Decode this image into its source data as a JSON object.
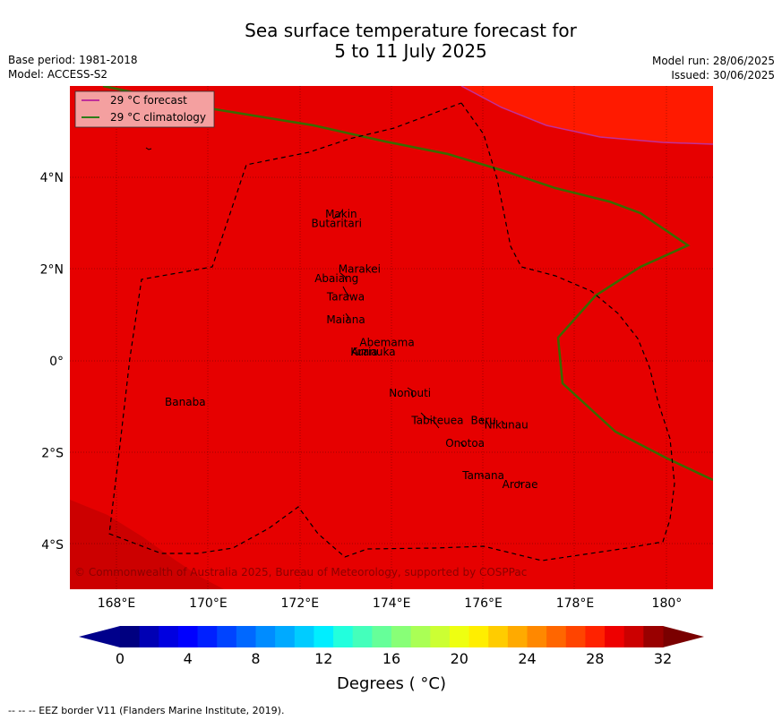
{
  "header": {
    "title_line1": "Sea surface temperature forecast for",
    "title_line2": "5 to 11 July 2025",
    "base_period": "Base period: 1981-2018",
    "model": "Model: ACCESS-S2",
    "model_run": "Model run: 28/06/2025",
    "issued": "Issued: 30/06/2025"
  },
  "legend": {
    "forecast_label": "29 °C  forecast",
    "forecast_color": "#c0309a",
    "climatology_label": "29 °C  climatology",
    "climatology_color": "#2e7d1a"
  },
  "map": {
    "lon_ticks": [
      "168°E",
      "170°E",
      "172°E",
      "174°E",
      "176°E",
      "178°E",
      "180°"
    ],
    "lat_ticks": [
      "4°N",
      "2°N",
      "0°",
      "2°S",
      "4°S"
    ],
    "copyright": "© Commonwealth of Australia 2025, Bureau of Meteorology, supported by COSPPac",
    "fill_colors": {
      "main": "#e60000",
      "warm": "#ff1a00",
      "cool": "#cc0000"
    },
    "places": [
      {
        "name": "Makin",
        "lon": 172.9,
        "lat": 3.2
      },
      {
        "name": "Butaritari",
        "lon": 172.8,
        "lat": 3.0
      },
      {
        "name": "Marakei",
        "lon": 173.3,
        "lat": 2.0
      },
      {
        "name": "Abaiang",
        "lon": 172.8,
        "lat": 1.8
      },
      {
        "name": "Tarawa",
        "lon": 173.0,
        "lat": 1.4
      },
      {
        "name": "Maiana",
        "lon": 173.0,
        "lat": 0.9
      },
      {
        "name": "Abemama",
        "lon": 173.9,
        "lat": 0.4
      },
      {
        "name": "Kuria",
        "lon": 173.4,
        "lat": 0.2
      },
      {
        "name": "Aranuka",
        "lon": 173.6,
        "lat": 0.2
      },
      {
        "name": "Banaba",
        "lon": 169.5,
        "lat": -0.9
      },
      {
        "name": "Nonouti",
        "lon": 174.4,
        "lat": -0.7
      },
      {
        "name": "Tabiteuea",
        "lon": 175.0,
        "lat": -1.3
      },
      {
        "name": "Beru",
        "lon": 176.0,
        "lat": -1.3
      },
      {
        "name": "Nikunau",
        "lon": 176.5,
        "lat": -1.4
      },
      {
        "name": "Onotoa",
        "lon": 175.6,
        "lat": -1.8
      },
      {
        "name": "Tamana",
        "lon": 176.0,
        "lat": -2.5
      },
      {
        "name": "Arorae",
        "lon": 176.8,
        "lat": -2.7
      }
    ]
  },
  "colorbar": {
    "tick_labels": [
      "0",
      "4",
      "8",
      "12",
      "16",
      "20",
      "24",
      "28",
      "32"
    ],
    "title": "Degrees ( °C)",
    "colors": [
      "#000080",
      "#0000b4",
      "#0000e0",
      "#0000ff",
      "#0020ff",
      "#0044ff",
      "#0068ff",
      "#008cff",
      "#00aaff",
      "#00ccff",
      "#00eeff",
      "#22ffdd",
      "#44ffbb",
      "#66ff99",
      "#88ff77",
      "#aaff55",
      "#ccff33",
      "#eeff11",
      "#ffee00",
      "#ffcc00",
      "#ffaa00",
      "#ff8800",
      "#ff6600",
      "#ff4400",
      "#ff2200",
      "#ee0000",
      "#cc0000",
      "#990000"
    ],
    "under_color": "#00008b",
    "over_color": "#7a0000"
  },
  "footer": {
    "eez_note": "--  --  -- EEZ border V11 (Flanders Marine Institute, 2019)."
  }
}
